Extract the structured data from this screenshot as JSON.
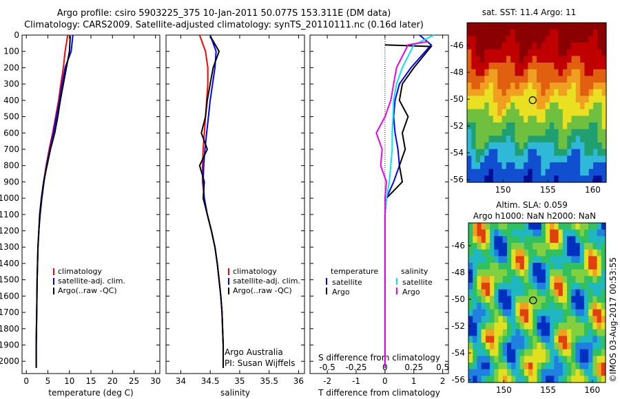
{
  "header": {
    "line1": "Argo profile: csiro 5903225_375 10-Jan-2011 50.077S 153.311E (DM data)",
    "line2": "Climatology: CARS2009. Satellite-adjusted climatology: synTS_20110111.nc (0.16d later)"
  },
  "colors": {
    "climatology": "#ff0000",
    "satellite": "#0000ff",
    "argo": "#000000",
    "sal_satellite": "#00e5ee",
    "sal_argo": "#ee00ee"
  },
  "chart_data": [
    {
      "type": "line",
      "xlabel": "temperature (deg C)",
      "xlim": [
        -1,
        31
      ],
      "ylim": [
        2075,
        0
      ],
      "xticks": [
        0,
        5,
        10,
        15,
        20,
        25,
        30
      ],
      "yticks": [
        0,
        100,
        200,
        300,
        400,
        500,
        600,
        700,
        800,
        900,
        1000,
        1100,
        1200,
        1300,
        1400,
        1500,
        1600,
        1700,
        1800,
        1900,
        2000
      ],
      "legend": [
        "climatology",
        "satellite-adj. clim.",
        "Argo(..raw -QC)"
      ],
      "series": [
        {
          "name": "climatology",
          "color": "#ff0000",
          "x": [
            9.6,
            9.0,
            8.6,
            8.0,
            7.5,
            6.8,
            6.1,
            5.3,
            4.6,
            4.0,
            3.5,
            3.1,
            2.9,
            2.7,
            2.6,
            2.5,
            2.45,
            2.4,
            2.35,
            2.3,
            2.3
          ],
          "y": [
            0,
            100,
            200,
            300,
            400,
            500,
            600,
            700,
            800,
            900,
            1000,
            1100,
            1200,
            1300,
            1400,
            1500,
            1600,
            1700,
            1800,
            1900,
            2040
          ]
        },
        {
          "name": "satellite-adj. clim.",
          "color": "#0000ff",
          "x": [
            10.8,
            10.4,
            9.0,
            8.3,
            7.7,
            7.0,
            6.3,
            5.5,
            4.7,
            4.1,
            3.6,
            3.2,
            2.9,
            2.7,
            2.6,
            2.5,
            2.45,
            2.4,
            2.35,
            2.3,
            2.3
          ],
          "y": [
            0,
            100,
            200,
            300,
            400,
            500,
            600,
            700,
            800,
            900,
            1000,
            1100,
            1200,
            1300,
            1400,
            1500,
            1600,
            1700,
            1800,
            1900,
            2040
          ]
        },
        {
          "name": "Argo(..raw -QC)",
          "color": "#000000",
          "x": [
            10.2,
            10.0,
            9.3,
            8.6,
            7.9,
            7.3,
            6.6,
            5.6,
            4.8,
            4.0,
            3.5,
            3.1,
            2.9,
            2.7,
            2.6,
            2.5,
            2.45,
            2.4,
            2.35,
            2.3,
            2.3
          ],
          "y": [
            5,
            100,
            200,
            300,
            400,
            500,
            600,
            700,
            800,
            900,
            1000,
            1100,
            1200,
            1300,
            1400,
            1500,
            1600,
            1700,
            1800,
            1900,
            2040
          ]
        }
      ]
    },
    {
      "type": "line",
      "xlabel": "salinity",
      "xlim": [
        33.75,
        36.1
      ],
      "ylim": [
        2075,
        0
      ],
      "xticks": [
        34,
        34.5,
        35,
        35.5,
        36
      ],
      "xticklabels": [
        "34",
        "34.5",
        "35",
        "35.5",
        "36"
      ],
      "legend": [
        "climatology",
        "satellite-adj. clim.",
        "Argo(..raw -QC)"
      ],
      "series": [
        {
          "name": "climatology",
          "color": "#ff0000",
          "x": [
            34.32,
            34.42,
            34.46,
            34.46,
            34.44,
            34.42,
            34.4,
            34.38,
            34.37,
            34.37,
            34.4,
            34.45,
            34.52,
            34.58,
            34.62,
            34.65,
            34.68,
            34.7,
            34.71,
            34.72,
            34.72
          ],
          "y": [
            0,
            100,
            200,
            300,
            400,
            500,
            600,
            700,
            800,
            900,
            1000,
            1100,
            1200,
            1300,
            1400,
            1500,
            1600,
            1700,
            1800,
            1900,
            2040
          ]
        },
        {
          "name": "satellite-adj. clim.",
          "color": "#0000ff",
          "x": [
            34.5,
            34.6,
            34.58,
            34.54,
            34.5,
            34.47,
            34.44,
            34.41,
            34.39,
            34.38,
            34.4,
            34.45,
            34.52,
            34.58,
            34.62,
            34.65,
            34.68,
            34.7,
            34.71,
            34.72,
            34.72
          ],
          "y": [
            0,
            100,
            200,
            300,
            400,
            500,
            600,
            700,
            800,
            900,
            1000,
            1100,
            1200,
            1300,
            1400,
            1500,
            1600,
            1700,
            1800,
            1900,
            2040
          ]
        },
        {
          "name": "Argo(..raw -QC)",
          "color": "#000000",
          "x": [
            34.5,
            34.65,
            34.55,
            34.5,
            34.45,
            34.42,
            34.35,
            34.45,
            34.32,
            34.4,
            34.38,
            34.45,
            34.52,
            34.58,
            34.62,
            34.65,
            34.68,
            34.7,
            34.71,
            34.72,
            34.72
          ],
          "y": [
            5,
            100,
            200,
            300,
            400,
            500,
            600,
            700,
            800,
            900,
            1000,
            1100,
            1200,
            1300,
            1400,
            1500,
            1600,
            1700,
            1800,
            1900,
            2040
          ]
        }
      ]
    },
    {
      "type": "line",
      "xlabel": "T difference from climatology",
      "toplabel": "S difference from climatology",
      "xlim": [
        -2.6,
        2.2
      ],
      "ylim": [
        2075,
        0
      ],
      "xticks": [
        -2,
        -1,
        0,
        1,
        2
      ],
      "top_ticklabels": [
        "-0.5",
        "-0.25",
        "0",
        "0.25",
        "0.5"
      ],
      "legend": [
        {
          "title": "temperature",
          "items": [
            "satellite",
            "Argo"
          ]
        },
        {
          "title": "salinity",
          "items": [
            "satellite",
            "Argo"
          ]
        }
      ],
      "series": [
        {
          "name": "satellite",
          "group": "temperature",
          "color": "#0000ff",
          "x": [
            1.2,
            1.6,
            0.9,
            0.5,
            0.35,
            0.3,
            0.35,
            0.45,
            0.5,
            0.3,
            0.05,
            0.0,
            0.0,
            0.0,
            0.0,
            0.0,
            0.0,
            0.0,
            0.0,
            0.0,
            0.0
          ],
          "y": [
            0,
            60,
            200,
            300,
            400,
            500,
            600,
            700,
            800,
            900,
            1000,
            1100,
            1200,
            1300,
            1400,
            1500,
            1600,
            1700,
            1800,
            1900,
            2040
          ]
        },
        {
          "name": "Argo",
          "group": "temperature",
          "color": "#000000",
          "x": [
            0.0,
            1.6,
            1.0,
            0.6,
            0.5,
            0.8,
            0.6,
            0.7,
            0.5,
            0.6,
            0.05,
            0.0,
            0.0,
            0.0,
            0.0,
            0.0,
            0.0,
            0.0,
            0.0,
            0.0,
            0.0
          ],
          "y": [
            60,
            70,
            200,
            300,
            400,
            500,
            600,
            700,
            800,
            900,
            1000,
            1100,
            1200,
            1300,
            1400,
            1500,
            1600,
            1700,
            1800,
            1900,
            2040
          ]
        },
        {
          "name": "satellite",
          "group": "salinity",
          "color": "#00e5ee",
          "x": [
            1.7,
            1.0,
            0.6,
            0.4,
            0.3,
            0.28,
            0.25,
            0.25,
            0.2,
            0.15,
            0.05,
            0.0,
            0.0,
            0.0,
            0.0,
            0.0,
            0.0,
            0.0,
            0.0,
            0.0,
            0.0
          ],
          "y": [
            0,
            60,
            200,
            300,
            400,
            500,
            600,
            700,
            800,
            900,
            1000,
            1100,
            1200,
            1300,
            1400,
            1500,
            1600,
            1700,
            1800,
            1900,
            2040
          ]
        },
        {
          "name": "Argo",
          "group": "salinity",
          "color": "#ee00ee",
          "x": [
            1.5,
            0.8,
            0.4,
            0.3,
            0.2,
            0.0,
            -0.3,
            -0.1,
            -0.15,
            0.05,
            0.0,
            0.0,
            0.0,
            0.0,
            0.0,
            0.0,
            0.0,
            0.0,
            0.0,
            0.0,
            0.0
          ],
          "y": [
            40,
            60,
            200,
            300,
            400,
            500,
            600,
            700,
            800,
            900,
            1000,
            1100,
            1200,
            1300,
            1400,
            1500,
            1600,
            1700,
            1800,
            1900,
            2040
          ]
        }
      ]
    },
    {
      "type": "heatmap",
      "title": "sat. SST: 11.4  Argo: 11",
      "xlim": [
        146,
        161.5
      ],
      "ylim": [
        -56.2,
        -44.3
      ],
      "xticks": [
        150,
        155,
        160
      ],
      "yticks": [
        -46,
        -48,
        -50,
        -52,
        -54,
        -56
      ],
      "marker": {
        "lon": 153.311,
        "lat": -50.077
      }
    },
    {
      "type": "heatmap",
      "title": "Altim. SLA: 0.059",
      "subtitle": "Argo h1000: NaN h2000: NaN",
      "xlim": [
        146,
        161.5
      ],
      "ylim": [
        -56.2,
        -44.3
      ],
      "xticks": [
        150,
        155,
        160
      ],
      "yticks": [
        -46,
        -48,
        -50,
        -52,
        -54,
        -56
      ],
      "marker": {
        "lon": 153.311,
        "lat": -50.077
      }
    }
  ],
  "footer": {
    "credit": "Argo Australia",
    "pi": "PI: Susan Wijffels",
    "stamp": "©IMOS 03-Aug-2017 00:53:55"
  }
}
